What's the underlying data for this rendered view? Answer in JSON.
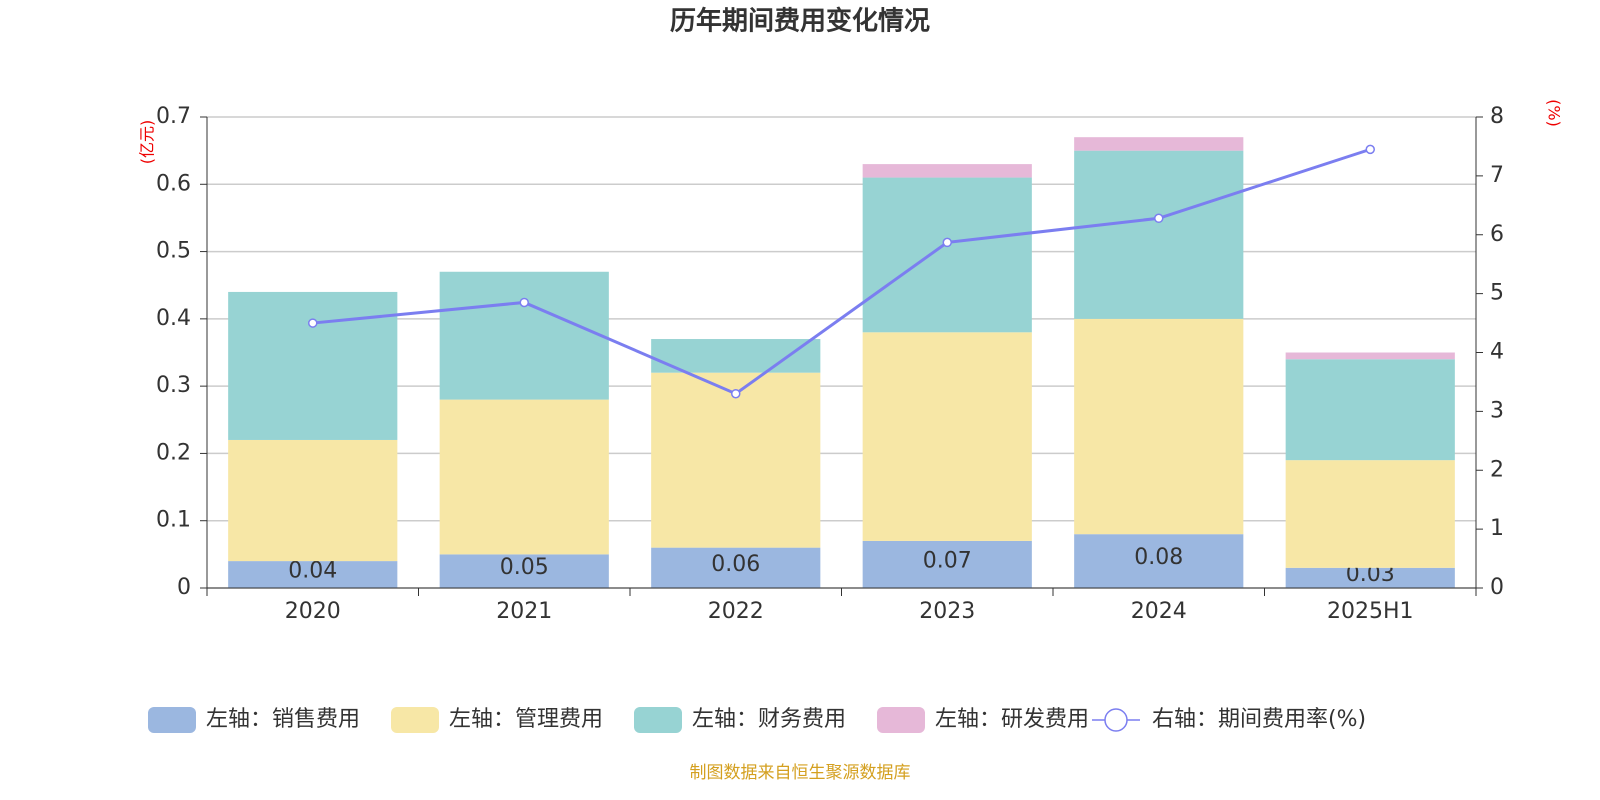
{
  "chart_data": {
    "type": "stacked-bar-line",
    "title": "历年期间费用变化情况",
    "y_label": "(亿元)",
    "y2_label": "(%)",
    "source": "制图数据来自恒生聚源数据库",
    "categories": [
      "2020",
      "2021",
      "2022",
      "2023",
      "2024",
      "2025H1"
    ],
    "series": [
      {
        "name": "左轴：销售费用",
        "color": "#9bb7e0",
        "type": "bar",
        "labels": true,
        "values": [
          0.04,
          0.05,
          0.06,
          0.07,
          0.08,
          0.03
        ]
      },
      {
        "name": "左轴：管理费用",
        "color": "#f7e7a6",
        "type": "bar",
        "values": [
          0.18,
          0.23,
          0.26,
          0.31,
          0.32,
          0.16
        ]
      },
      {
        "name": "左轴：财务费用",
        "color": "#97d3d3",
        "type": "bar",
        "values": [
          0.22,
          0.19,
          0.05,
          0.23,
          0.25,
          0.15
        ]
      },
      {
        "name": "左轴：研发费用",
        "color": "#e6b8d8",
        "type": "bar",
        "values": [
          0,
          0,
          0,
          0.02,
          0.02,
          0.01
        ]
      },
      {
        "name": "右轴：期间费用率(%)",
        "color": "#7b7ef0",
        "type": "line",
        "axis": "y2",
        "values": [
          4.5,
          4.85,
          3.3,
          5.87,
          6.28,
          7.45
        ]
      }
    ],
    "ylim": [
      0,
      0.7
    ],
    "yticks": [
      0,
      0.1,
      0.2,
      0.3,
      0.4,
      0.5,
      0.6,
      0.7
    ],
    "y2lim": [
      0,
      8
    ],
    "y2ticks": [
      0,
      1,
      2,
      3,
      4,
      5,
      6,
      7,
      8
    ],
    "grid": true
  }
}
